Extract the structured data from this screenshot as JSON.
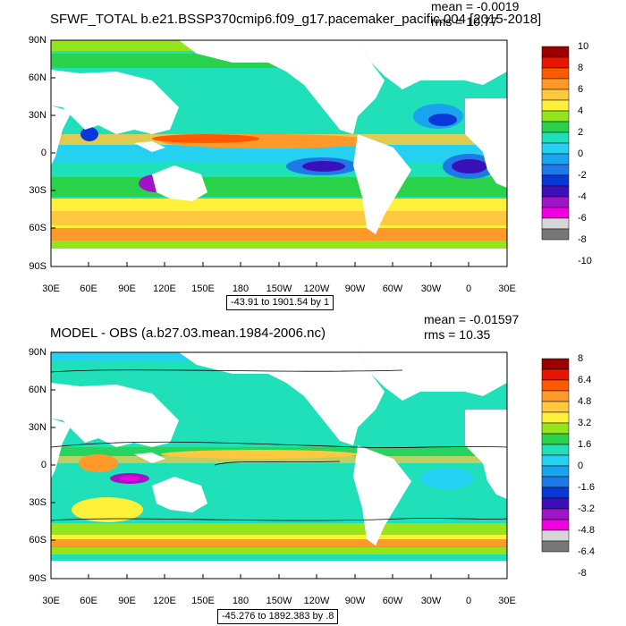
{
  "panels": [
    {
      "title": "SFWF_TOTAL b.e21.BSSP370cmip6.f09_g17.pacemaker_pacific.004 [2015-2018]",
      "mean": "mean = -0.0019",
      "rms": "rms = 10.77",
      "range": "-43.91 to 1901.54 by 1",
      "lat_labels": [
        "90N",
        "60N",
        "30N",
        "0",
        "30S",
        "60S",
        "90S"
      ],
      "lon_labels": [
        "30E",
        "60E",
        "90E",
        "120E",
        "150E",
        "180",
        "150W",
        "120W",
        "90W",
        "60W",
        "30W",
        "0",
        "30E"
      ],
      "colorbar": {
        "labels": [
          "10",
          "8",
          "6",
          "4",
          "2",
          "0",
          "-2",
          "-4",
          "-6",
          "-8",
          "-10"
        ],
        "colors": [
          "#9b0000",
          "#e81500",
          "#ff5a00",
          "#ff9a2a",
          "#ffc83e",
          "#fff13a",
          "#94e51b",
          "#2ad14a",
          "#1fe0b8",
          "#24d1f0",
          "#1aa3ef",
          "#1f78e8",
          "#0a38d8",
          "#3c10b8",
          "#a014c8",
          "#f000e0",
          "#d6d6d6",
          "#777777"
        ]
      }
    },
    {
      "title": "MODEL - OBS (a.b27.03.mean.1984-2006.nc)",
      "mean": "mean = -0.01597",
      "rms": "rms = 10.35",
      "range": "-45.276 to 1892.383 by .8",
      "lat_labels": [
        "90N",
        "60N",
        "30N",
        "0",
        "30S",
        "60S",
        "90S"
      ],
      "lon_labels": [
        "30E",
        "60E",
        "90E",
        "120E",
        "150E",
        "180",
        "150W",
        "120W",
        "90W",
        "60W",
        "30W",
        "0",
        "30E"
      ],
      "colorbar": {
        "labels": [
          "8",
          "6.4",
          "4.8",
          "3.2",
          "1.6",
          "0",
          "-1.6",
          "-3.2",
          "-4.8",
          "-6.4",
          "-8"
        ],
        "colors": [
          "#9b0000",
          "#e81500",
          "#ff5a00",
          "#ff9a2a",
          "#ffc83e",
          "#fff13a",
          "#94e51b",
          "#2ad14a",
          "#1fe0b8",
          "#24d1f0",
          "#1aa3ef",
          "#1f78e8",
          "#0a38d8",
          "#3c10b8",
          "#a014c8",
          "#f000e0",
          "#d6d6d6",
          "#777777"
        ]
      }
    }
  ]
}
